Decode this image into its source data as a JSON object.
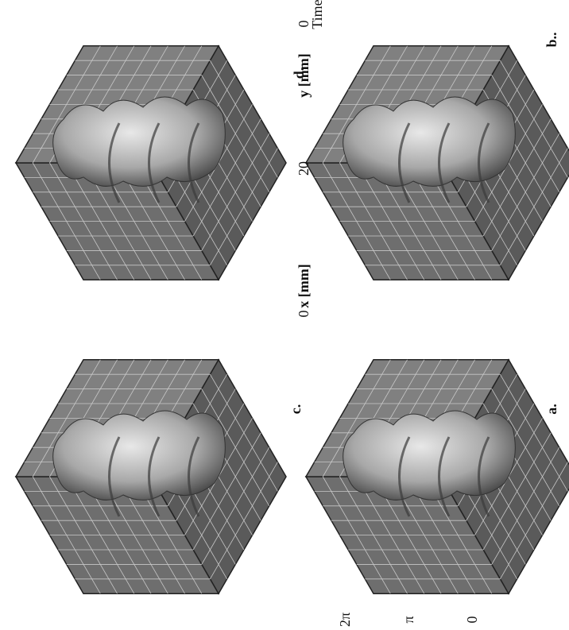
{
  "panels": [
    {
      "label": "d."
    },
    {
      "label": "b.."
    },
    {
      "label": "c."
    },
    {
      "label": "a."
    }
  ],
  "axes": {
    "x_label": "x [mm]",
    "x_ticks": [
      "0",
      "20"
    ],
    "y_label": "y [mm]",
    "y_ticks": [
      "0"
    ],
    "time_label": "Time",
    "time_ticks": [
      "2π",
      "π",
      "0"
    ]
  }
}
